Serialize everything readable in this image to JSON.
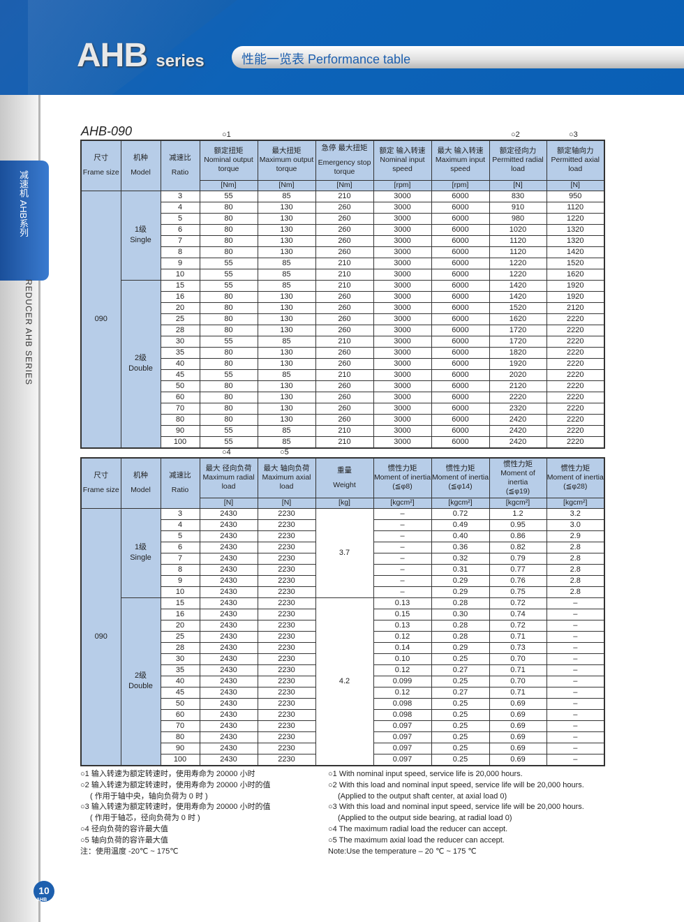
{
  "header": {
    "brand": "AHB",
    "brand_suffix": "series",
    "title": "性能一览表 Performance table"
  },
  "side": {
    "tab_cn": "减速机 AHB系列",
    "tab_en": "REDUCER AHB SERIES",
    "page_number": "10",
    "page_label": "AHB"
  },
  "model": "AHB-090",
  "table1": {
    "marks": [
      "1",
      "2",
      "3"
    ],
    "headers": [
      {
        "cn": "尺寸",
        "en": "Frame size"
      },
      {
        "cn": "机种",
        "en": "Model"
      },
      {
        "cn": "减速比",
        "en": "Ratio"
      },
      {
        "cn": "额定扭矩",
        "en": "Nominal output torque",
        "unit": "[Nm]"
      },
      {
        "cn": "最大扭矩",
        "en": "Maximum output torque",
        "unit": "[Nm]"
      },
      {
        "cn": "急停 最大扭矩",
        "en": "Emergency stop torque",
        "unit": "[Nm]"
      },
      {
        "cn": "额定 输入转速",
        "en": "Nominal input speed",
        "unit": "[rpm]"
      },
      {
        "cn": "最大 输入转速",
        "en": "Maximum input speed",
        "unit": "[rpm]"
      },
      {
        "cn": "额定径向力",
        "en": "Permitted radial load",
        "unit": "[N]"
      },
      {
        "cn": "额定轴向力",
        "en": "Permitted axial load",
        "unit": "[N]"
      }
    ],
    "frame": "090",
    "groups": [
      {
        "cn": "1级",
        "en": "Single"
      },
      {
        "cn": "2级",
        "en": "Double"
      }
    ],
    "rows": [
      [
        "3",
        "55",
        "85",
        "210",
        "3000",
        "6000",
        "830",
        "950"
      ],
      [
        "4",
        "80",
        "130",
        "260",
        "3000",
        "6000",
        "910",
        "1120"
      ],
      [
        "5",
        "80",
        "130",
        "260",
        "3000",
        "6000",
        "980",
        "1220"
      ],
      [
        "6",
        "80",
        "130",
        "260",
        "3000",
        "6000",
        "1020",
        "1320"
      ],
      [
        "7",
        "80",
        "130",
        "260",
        "3000",
        "6000",
        "1120",
        "1320"
      ],
      [
        "8",
        "80",
        "130",
        "260",
        "3000",
        "6000",
        "1120",
        "1420"
      ],
      [
        "9",
        "55",
        "85",
        "210",
        "3000",
        "6000",
        "1220",
        "1520"
      ],
      [
        "10",
        "55",
        "85",
        "210",
        "3000",
        "6000",
        "1220",
        "1620"
      ],
      [
        "15",
        "55",
        "85",
        "210",
        "3000",
        "6000",
        "1420",
        "1920"
      ],
      [
        "16",
        "80",
        "130",
        "260",
        "3000",
        "6000",
        "1420",
        "1920"
      ],
      [
        "20",
        "80",
        "130",
        "260",
        "3000",
        "6000",
        "1520",
        "2120"
      ],
      [
        "25",
        "80",
        "130",
        "260",
        "3000",
        "6000",
        "1620",
        "2220"
      ],
      [
        "28",
        "80",
        "130",
        "260",
        "3000",
        "6000",
        "1720",
        "2220"
      ],
      [
        "30",
        "55",
        "85",
        "210",
        "3000",
        "6000",
        "1720",
        "2220"
      ],
      [
        "35",
        "80",
        "130",
        "260",
        "3000",
        "6000",
        "1820",
        "2220"
      ],
      [
        "40",
        "80",
        "130",
        "260",
        "3000",
        "6000",
        "1920",
        "2220"
      ],
      [
        "45",
        "55",
        "85",
        "210",
        "3000",
        "6000",
        "2020",
        "2220"
      ],
      [
        "50",
        "80",
        "130",
        "260",
        "3000",
        "6000",
        "2120",
        "2220"
      ],
      [
        "60",
        "80",
        "130",
        "260",
        "3000",
        "6000",
        "2220",
        "2220"
      ],
      [
        "70",
        "80",
        "130",
        "260",
        "3000",
        "6000",
        "2320",
        "2220"
      ],
      [
        "80",
        "80",
        "130",
        "260",
        "3000",
        "6000",
        "2420",
        "2220"
      ],
      [
        "90",
        "55",
        "85",
        "210",
        "3000",
        "6000",
        "2420",
        "2220"
      ],
      [
        "100",
        "55",
        "85",
        "210",
        "3000",
        "6000",
        "2420",
        "2220"
      ]
    ]
  },
  "table2": {
    "marks": [
      "4",
      "5"
    ],
    "headers": [
      {
        "cn": "尺寸",
        "en": "Frame size"
      },
      {
        "cn": "机种",
        "en": "Model"
      },
      {
        "cn": "减速比",
        "en": "Ratio"
      },
      {
        "cn": "最大 径向负荷",
        "en": "Maximum radial load",
        "unit": "[N]"
      },
      {
        "cn": "最大 轴向负荷",
        "en": "Maximum axial load",
        "unit": "[N]"
      },
      {
        "cn": "重量",
        "en": "Weight",
        "unit": "[kg]"
      },
      {
        "cn": "惯性力矩",
        "en": "Moment of inertia",
        "sub": "(≦φ8)",
        "unit": "[kgcm²]"
      },
      {
        "cn": "惯性力矩",
        "en": "Moment of inertia",
        "sub": "(≦φ14)",
        "unit": "[kgcm²]"
      },
      {
        "cn": "惯性力矩",
        "en": "Moment of inertia",
        "sub": "(≦φ19)",
        "unit": "[kgcm²]"
      },
      {
        "cn": "惯性力矩",
        "en": "Moment of inertia",
        "sub": "(≦φ28)",
        "unit": "[kgcm²]"
      }
    ],
    "weights": [
      "3.7",
      "4.2"
    ],
    "rows": [
      [
        "3",
        "2430",
        "2230",
        "–",
        "0.72",
        "1.2",
        "3.2"
      ],
      [
        "4",
        "2430",
        "2230",
        "–",
        "0.49",
        "0.95",
        "3.0"
      ],
      [
        "5",
        "2430",
        "2230",
        "–",
        "0.40",
        "0.86",
        "2.9"
      ],
      [
        "6",
        "2430",
        "2230",
        "–",
        "0.36",
        "0.82",
        "2.8"
      ],
      [
        "7",
        "2430",
        "2230",
        "–",
        "0.32",
        "0.79",
        "2.8"
      ],
      [
        "8",
        "2430",
        "2230",
        "–",
        "0.31",
        "0.77",
        "2.8"
      ],
      [
        "9",
        "2430",
        "2230",
        "–",
        "0.29",
        "0.76",
        "2.8"
      ],
      [
        "10",
        "2430",
        "2230",
        "–",
        "0.29",
        "0.75",
        "2.8"
      ],
      [
        "15",
        "2430",
        "2230",
        "0.13",
        "0.28",
        "0.72",
        "–"
      ],
      [
        "16",
        "2430",
        "2230",
        "0.15",
        "0.30",
        "0.74",
        "–"
      ],
      [
        "20",
        "2430",
        "2230",
        "0.13",
        "0.28",
        "0.72",
        "–"
      ],
      [
        "25",
        "2430",
        "2230",
        "0.12",
        "0.28",
        "0.71",
        "–"
      ],
      [
        "28",
        "2430",
        "2230",
        "0.14",
        "0.29",
        "0.73",
        "–"
      ],
      [
        "30",
        "2430",
        "2230",
        "0.10",
        "0.25",
        "0.70",
        "–"
      ],
      [
        "35",
        "2430",
        "2230",
        "0.12",
        "0.27",
        "0.71",
        "–"
      ],
      [
        "40",
        "2430",
        "2230",
        "0.099",
        "0.25",
        "0.70",
        "–"
      ],
      [
        "45",
        "2430",
        "2230",
        "0.12",
        "0.27",
        "0.71",
        "–"
      ],
      [
        "50",
        "2430",
        "2230",
        "0.098",
        "0.25",
        "0.69",
        "–"
      ],
      [
        "60",
        "2430",
        "2230",
        "0.098",
        "0.25",
        "0.69",
        "–"
      ],
      [
        "70",
        "2430",
        "2230",
        "0.097",
        "0.25",
        "0.69",
        "–"
      ],
      [
        "80",
        "2430",
        "2230",
        "0.097",
        "0.25",
        "0.69",
        "–"
      ],
      [
        "90",
        "2430",
        "2230",
        "0.097",
        "0.25",
        "0.69",
        "–"
      ],
      [
        "100",
        "2430",
        "2230",
        "0.097",
        "0.25",
        "0.69",
        "–"
      ]
    ]
  },
  "notes_cn": [
    {
      "t": "○1  输入转速为额定转速时，使用寿命为 20000 小时"
    },
    {
      "t": "○2  输入转速为额定转速时，使用寿命为 20000 小时的值"
    },
    {
      "t": "( 作用于轴中央，轴向负荷为 0 时 )",
      "indent": true
    },
    {
      "t": "○3  输入转速为额定转速时，使用寿命为 20000 小时的值"
    },
    {
      "t": "( 作用于轴芯，径向负荷为 0 时 )",
      "indent": true
    },
    {
      "t": "○4  径向负荷的容许最大值"
    },
    {
      "t": "○5  轴向负荷的容许最大值"
    },
    {
      "t": "注：使用温度 -20℃ ~ 175℃"
    }
  ],
  "notes_en": [
    {
      "t": "○1  With nominal input speed, service life is 20,000 hours."
    },
    {
      "t": "○2  With this load and nominal input speed, service life will be 20,000 hours."
    },
    {
      "t": "(Applied to the output shaft center, at axial load 0)",
      "indent": true
    },
    {
      "t": "○3  With this load and nominal input speed, service life will be 20,000 hours."
    },
    {
      "t": "(Applied to the output side bearing, at radial load 0)",
      "indent": true
    },
    {
      "t": "○4  The maximum radial load the reducer can accept."
    },
    {
      "t": "○5  The maximum axial load the reducer can accept."
    },
    {
      "t": "Note:Use the temperature – 20 ℃ ~ 175 ℃"
    }
  ]
}
